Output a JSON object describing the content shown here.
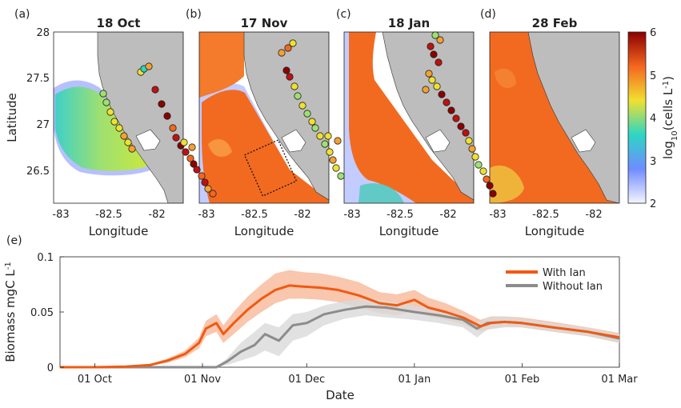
{
  "figure": {
    "xlabel_maps": "Longitude",
    "ylabel_maps": "Latitude",
    "colorbar_label": "log10(cells L-1)",
    "colorbar_ticks": [
      "2",
      "3",
      "4",
      "5",
      "6"
    ],
    "colorbar_colors": [
      "#f5f5ff",
      "#6f8cff",
      "#2dd6c4",
      "#f0e030",
      "#f5661e",
      "#8a0000"
    ],
    "map_x_ticks": [
      "-83",
      "-82.5",
      "-82"
    ],
    "map_y_ticks": [
      "28",
      "27.5",
      "27",
      "26.5"
    ],
    "land_color": "#bdbdbd",
    "panels": [
      {
        "label": "(a)",
        "title": "18 Oct"
      },
      {
        "label": "(b)",
        "title": "17 Nov"
      },
      {
        "label": "(c)",
        "title": "18 Jan"
      },
      {
        "label": "(d)",
        "title": "28 Feb"
      }
    ],
    "panel_e_label": "(e)"
  },
  "chart_data": {
    "type": "line",
    "xlabel": "Date",
    "ylabel": "Biomass mgC L-1",
    "x_ticks": [
      "01 Oct",
      "01 Nov",
      "01 Dec",
      "01 Jan",
      "01 Feb",
      "01 Mar"
    ],
    "y_ticks": [
      "0",
      "0.05",
      "0.1"
    ],
    "ylim": [
      0,
      0.1
    ],
    "x_dates_note_range": [
      "2022-09-21",
      "2023-03-01"
    ],
    "legend_position": "top-right",
    "series": [
      {
        "name": "With Ian",
        "color": "#f05a12",
        "band_color": "#f7b393",
        "x": [
          "2022-09-21",
          "2022-10-01",
          "2022-10-10",
          "2022-10-17",
          "2022-10-22",
          "2022-10-27",
          "2022-10-31",
          "2022-11-02",
          "2022-11-05",
          "2022-11-07",
          "2022-11-10",
          "2022-11-14",
          "2022-11-18",
          "2022-11-22",
          "2022-11-26",
          "2022-11-30",
          "2022-12-05",
          "2022-12-10",
          "2022-12-16",
          "2022-12-22",
          "2022-12-27",
          "2023-01-01",
          "2023-01-05",
          "2023-01-10",
          "2023-01-15",
          "2023-01-20",
          "2023-01-23",
          "2023-01-27",
          "2023-02-01",
          "2023-02-10",
          "2023-02-20",
          "2023-03-01"
        ],
        "values": [
          0,
          0,
          0.0005,
          0.002,
          0.006,
          0.012,
          0.022,
          0.035,
          0.04,
          0.03,
          0.04,
          0.052,
          0.062,
          0.07,
          0.074,
          0.073,
          0.072,
          0.07,
          0.065,
          0.058,
          0.056,
          0.061,
          0.054,
          0.05,
          0.045,
          0.037,
          0.04,
          0.041,
          0.04,
          0.036,
          0.032,
          0.027
        ],
        "band_low": [
          0,
          0,
          0.0003,
          0.0015,
          0.004,
          0.009,
          0.017,
          0.028,
          0.032,
          0.022,
          0.03,
          0.041,
          0.05,
          0.058,
          0.062,
          0.062,
          0.061,
          0.059,
          0.054,
          0.049,
          0.047,
          0.051,
          0.046,
          0.043,
          0.039,
          0.032,
          0.035,
          0.037,
          0.036,
          0.032,
          0.028,
          0.022
        ],
        "band_high": [
          0,
          0,
          0.0008,
          0.003,
          0.008,
          0.015,
          0.027,
          0.042,
          0.048,
          0.038,
          0.05,
          0.064,
          0.075,
          0.085,
          0.088,
          0.086,
          0.085,
          0.082,
          0.077,
          0.068,
          0.066,
          0.07,
          0.063,
          0.058,
          0.051,
          0.043,
          0.046,
          0.046,
          0.045,
          0.041,
          0.036,
          0.031
        ]
      },
      {
        "name": "Without Ian",
        "color": "#8c8c8c",
        "band_color": "#d9d9d9",
        "x": [
          "2022-09-21",
          "2022-10-01",
          "2022-11-01",
          "2022-11-05",
          "2022-11-08",
          "2022-11-12",
          "2022-11-16",
          "2022-11-19",
          "2022-11-23",
          "2022-11-27",
          "2022-12-01",
          "2022-12-06",
          "2022-12-12",
          "2022-12-18",
          "2022-12-24",
          "2023-01-01",
          "2023-01-08",
          "2023-01-15",
          "2023-01-19",
          "2023-01-22",
          "2023-01-27",
          "2023-02-01",
          "2023-02-10",
          "2023-02-20",
          "2023-03-01"
        ],
        "values": [
          0,
          0,
          0,
          0,
          0.005,
          0.014,
          0.02,
          0.03,
          0.024,
          0.038,
          0.04,
          0.048,
          0.052,
          0.055,
          0.054,
          0.05,
          0.047,
          0.043,
          0.035,
          0.04,
          0.041,
          0.04,
          0.036,
          0.032,
          0.026
        ],
        "band_low": [
          0,
          0,
          0,
          0,
          0.002,
          0.006,
          0.01,
          0.015,
          0.01,
          0.024,
          0.028,
          0.038,
          0.044,
          0.047,
          0.045,
          0.043,
          0.04,
          0.036,
          0.027,
          0.034,
          0.036,
          0.036,
          0.032,
          0.028,
          0.022
        ],
        "band_high": [
          0,
          0,
          0,
          0,
          0.008,
          0.022,
          0.032,
          0.04,
          0.036,
          0.048,
          0.05,
          0.056,
          0.06,
          0.062,
          0.06,
          0.056,
          0.052,
          0.048,
          0.04,
          0.045,
          0.046,
          0.044,
          0.04,
          0.036,
          0.03
        ]
      }
    ]
  }
}
